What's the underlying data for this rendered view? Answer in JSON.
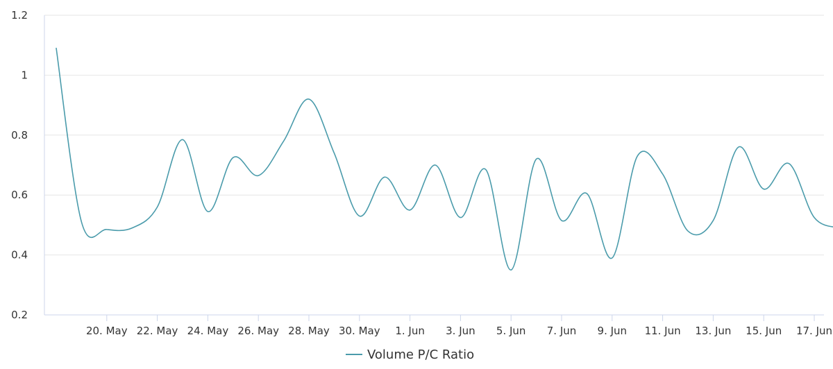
{
  "chart_data": {
    "type": "line",
    "title": "",
    "xlabel": "",
    "ylabel": "",
    "ylim": [
      0.2,
      1.2
    ],
    "yticks": [
      "0.2",
      "0.4",
      "0.6",
      "0.8",
      "1",
      "1.2"
    ],
    "xticks": [
      "20. May",
      "22. May",
      "24. May",
      "26. May",
      "28. May",
      "30. May",
      "1. Jun",
      "3. Jun",
      "5. Jun",
      "7. Jun",
      "9. Jun",
      "11. Jun",
      "13. Jun",
      "15. Jun",
      "17. Jun"
    ],
    "grid": true,
    "legend_position": "bottom-center",
    "series": [
      {
        "name": "Volume P/C Ratio",
        "color": "#4a9bab",
        "x": [
          "18. May",
          "19. May",
          "20. May",
          "21. May",
          "22. May",
          "23. May",
          "24. May",
          "25. May",
          "26. May",
          "27. May",
          "28. May",
          "29. May",
          "30. May",
          "31. May",
          "1. Jun",
          "2. Jun",
          "3. Jun",
          "4. Jun",
          "5. Jun",
          "6. Jun",
          "7. Jun",
          "8. Jun",
          "9. Jun",
          "10. Jun",
          "11. Jun",
          "12. Jun",
          "13. Jun",
          "14. Jun",
          "15. Jun",
          "16. Jun",
          "17. Jun",
          "18. Jun"
        ],
        "values": [
          1.09,
          0.51,
          0.485,
          0.49,
          0.56,
          0.785,
          0.545,
          0.725,
          0.665,
          0.78,
          0.92,
          0.74,
          0.53,
          0.66,
          0.55,
          0.7,
          0.525,
          0.685,
          0.35,
          0.72,
          0.515,
          0.605,
          0.39,
          0.73,
          0.67,
          0.48,
          0.515,
          0.76,
          0.62,
          0.705,
          0.525,
          0.49
        ]
      }
    ]
  }
}
